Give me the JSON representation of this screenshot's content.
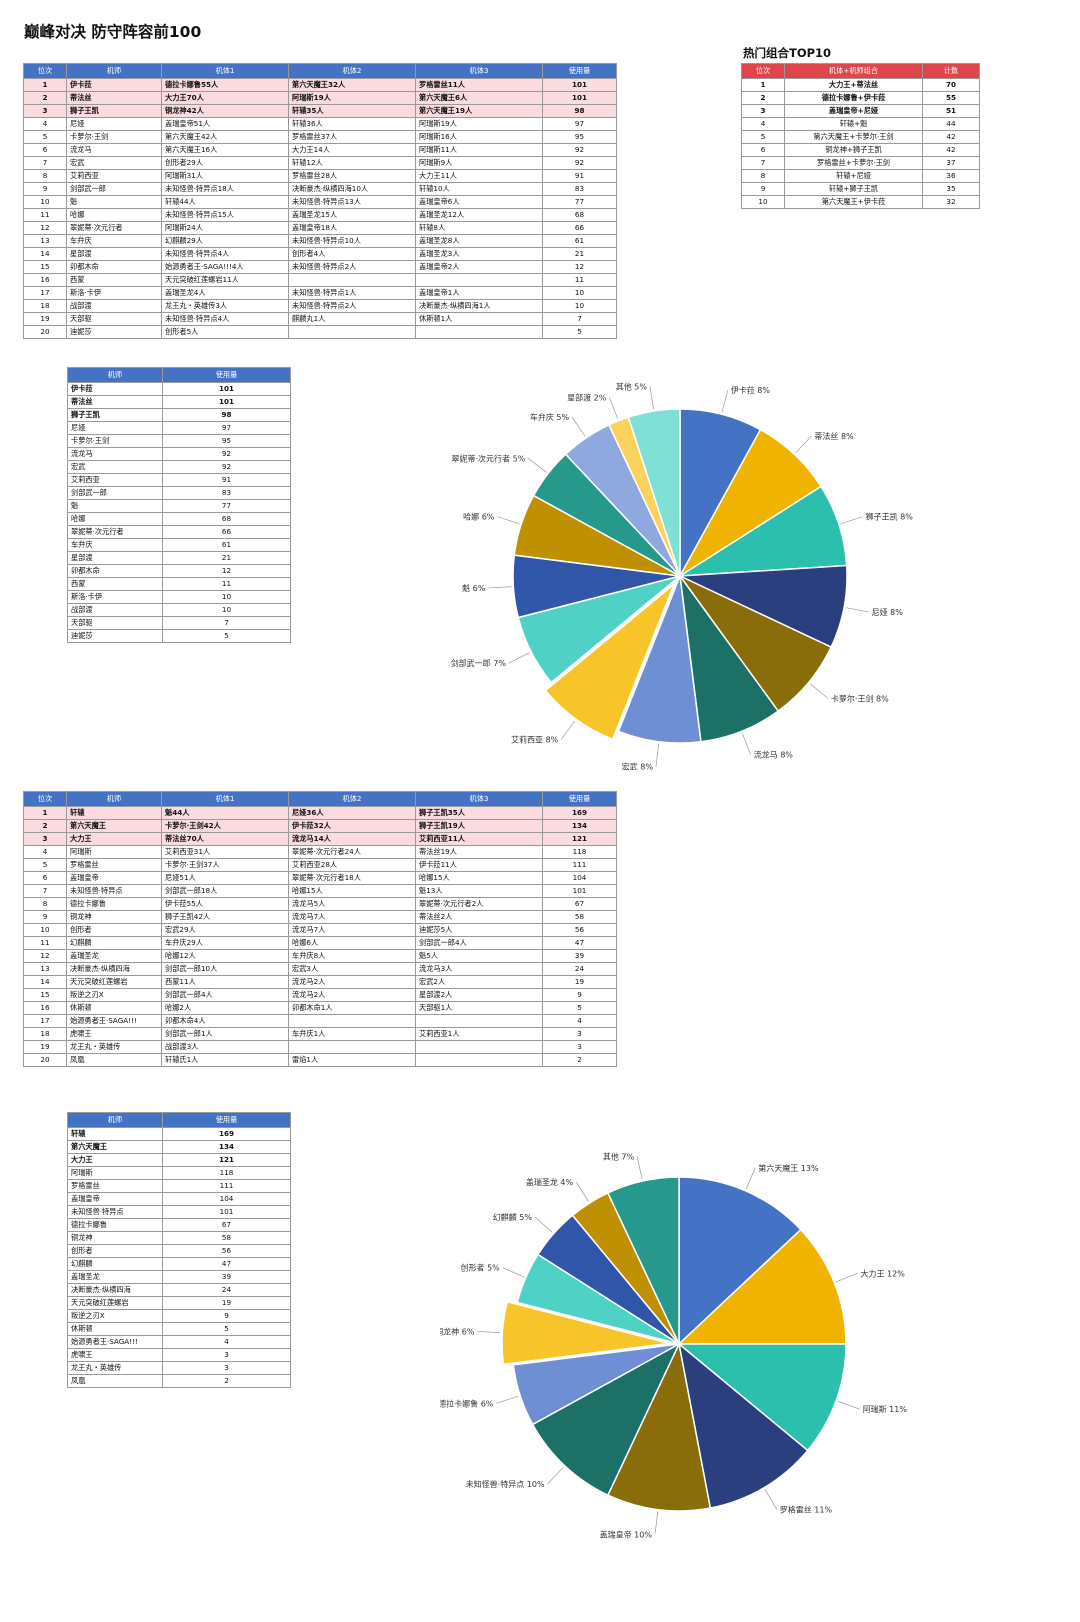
{
  "page_title": "巅峰对决 防守阵容前100",
  "top10_title": "热门组合TOP10",
  "table1": {
    "headers": [
      "位次",
      "机师",
      "机体1",
      "机体2",
      "机体3",
      "使用量"
    ],
    "rows": [
      [
        "1",
        "伊卡菈",
        "德拉卡娜鲁55人",
        "第六天魔王32人",
        "罗格雷丝11人",
        "101"
      ],
      [
        "2",
        "蒂法丝",
        "大力王70人",
        "阿瑞斯19人",
        "第六天魔王6人",
        "101"
      ],
      [
        "3",
        "狮子王凯",
        "铜龙神42人",
        "轩辕35人",
        "第六天魔王19人",
        "98"
      ],
      [
        "4",
        "尼娅",
        "盖瑞皇帝51人",
        "轩辕36人",
        "阿瑞斯19人",
        "97"
      ],
      [
        "5",
        "卡萝尔·王剑",
        "第六天魔王42人",
        "罗格雷丝37人",
        "阿瑞斯16人",
        "95"
      ],
      [
        "6",
        "流龙马",
        "第六天魔王16人",
        "大力王14人",
        "阿瑞斯11人",
        "92"
      ],
      [
        "7",
        "宏武",
        "创形者29人",
        "轩辕12人",
        "阿瑞斯9人",
        "92"
      ],
      [
        "8",
        "艾莉西亚",
        "阿瑞斯31人",
        "罗格雷丝28人",
        "大力王11人",
        "91"
      ],
      [
        "9",
        "剑部武一郎",
        "未知怪兽·特异点18人",
        "决断豪杰·纵横四海10人",
        "轩辕10人",
        "83"
      ],
      [
        "10",
        "魁",
        "轩辕44人",
        "未知怪兽·特异点13人",
        "盖瑞皇帝6人",
        "77"
      ],
      [
        "11",
        "哈娜",
        "未知怪兽·特异点15人",
        "盖瑞圣龙15人",
        "盖瑞圣龙12人",
        "68"
      ],
      [
        "12",
        "翠妮蒂·次元行者",
        "阿瑞斯24人",
        "盖瑞皇帝18人",
        "轩辕8人",
        "66"
      ],
      [
        "13",
        "车弁庆",
        "幻麒麟29人",
        "未知怪兽·特异点10人",
        "盖瑞圣龙8人",
        "61"
      ],
      [
        "14",
        "星部渡",
        "未知怪兽·特异点4人",
        "创形者4人",
        "盖瑞圣龙3人",
        "21"
      ],
      [
        "15",
        "卯都木命",
        "始源勇者王·SAGA!!!4人",
        "未知怪兽·特异点2人",
        "盖瑞皇帝2人",
        "12"
      ],
      [
        "16",
        "西蒙",
        "天元突破红莲螺岩11人",
        "",
        "",
        "11"
      ],
      [
        "17",
        "斯洛·卡伊",
        "盖瑞圣龙4人",
        "未知怪兽·特异点1人",
        "盖瑞皇帝1人",
        "10"
      ],
      [
        "18",
        "战部渡",
        "龙王丸・英雄传3人",
        "未知怪兽·特异点2人",
        "决断豪杰·纵横四海1人",
        "10"
      ],
      [
        "19",
        "天部驱",
        "未知怪兽·特异点4人",
        "麒麟丸1人",
        "休斯顿1人",
        "7"
      ],
      [
        "20",
        "迪妮莎",
        "创形者5人",
        "",
        "",
        "5"
      ]
    ]
  },
  "top10": {
    "headers": [
      "位次",
      "机体+机师组合",
      "计数"
    ],
    "rows": [
      [
        "1",
        "大力王+蒂法丝",
        "70"
      ],
      [
        "2",
        "德拉卡娜鲁+伊卡菈",
        "55"
      ],
      [
        "3",
        "盖瑞皇帝+尼娅",
        "51"
      ],
      [
        "4",
        "轩辕+魁",
        "44"
      ],
      [
        "5",
        "第六天魔王+卡萝尔·王剑",
        "42"
      ],
      [
        "6",
        "铜龙神+狮子王凯",
        "42"
      ],
      [
        "7",
        "罗格雷丝+卡萝尔·王剑",
        "37"
      ],
      [
        "8",
        "轩辕+尼娅",
        "36"
      ],
      [
        "9",
        "轩辕+狮子王凯",
        "35"
      ],
      [
        "10",
        "第六天魔王+伊卡菈",
        "32"
      ]
    ]
  },
  "table2": {
    "headers": [
      "机师",
      "使用量"
    ],
    "rows": [
      [
        "伊卡菈",
        "101"
      ],
      [
        "蒂法丝",
        "101"
      ],
      [
        "狮子王凯",
        "98"
      ],
      [
        "尼娅",
        "97"
      ],
      [
        "卡萝尔·王剑",
        "95"
      ],
      [
        "流龙马",
        "92"
      ],
      [
        "宏武",
        "92"
      ],
      [
        "艾莉西亚",
        "91"
      ],
      [
        "剑部武一郎",
        "83"
      ],
      [
        "魁",
        "77"
      ],
      [
        "哈娜",
        "68"
      ],
      [
        "翠妮蒂·次元行者",
        "66"
      ],
      [
        "车弁庆",
        "61"
      ],
      [
        "星部渡",
        "21"
      ],
      [
        "卯都木命",
        "12"
      ],
      [
        "西蒙",
        "11"
      ],
      [
        "斯洛·卡伊",
        "10"
      ],
      [
        "战部渡",
        "10"
      ],
      [
        "天部驱",
        "7"
      ],
      [
        "迪妮莎",
        "5"
      ]
    ]
  },
  "table3": {
    "headers": [
      "位次",
      "机师",
      "机体1",
      "机体2",
      "机体3",
      "使用量"
    ],
    "rows": [
      [
        "1",
        "轩辕",
        "魁44人",
        "尼娅36人",
        "狮子王凯35人",
        "169"
      ],
      [
        "2",
        "第六天魔王",
        "卡萝尔·王剑42人",
        "伊卡菈32人",
        "狮子王凯19人",
        "134"
      ],
      [
        "3",
        "大力王",
        "蒂法丝70人",
        "流龙马14人",
        "艾莉西亚11人",
        "121"
      ],
      [
        "4",
        "阿瑞斯",
        "艾莉西亚31人",
        "翠妮蒂·次元行者24人",
        "蒂法丝19人",
        "118"
      ],
      [
        "5",
        "罗格雷丝",
        "卡萝尔·王剑37人",
        "艾莉西亚28人",
        "伊卡菈11人",
        "111"
      ],
      [
        "6",
        "盖瑞皇帝",
        "尼娅51人",
        "翠妮蒂·次元行者18人",
        "哈娜15人",
        "104"
      ],
      [
        "7",
        "未知怪兽·特异点",
        "剑部武一郎18人",
        "哈娜15人",
        "魁13人",
        "101"
      ],
      [
        "8",
        "德拉卡娜鲁",
        "伊卡菈55人",
        "流龙马5人",
        "翠妮蒂·次元行者2人",
        "67"
      ],
      [
        "9",
        "铜龙神",
        "狮子王凯42人",
        "流龙马7人",
        "蒂法丝2人",
        "58"
      ],
      [
        "10",
        "创形者",
        "宏武29人",
        "流龙马7人",
        "迪妮莎5人",
        "56"
      ],
      [
        "11",
        "幻麒麟",
        "车弁庆29人",
        "哈娜6人",
        "剑部武一郎4人",
        "47"
      ],
      [
        "12",
        "盖瑞圣龙",
        "哈娜12人",
        "车弁庆8人",
        "魁5人",
        "39"
      ],
      [
        "13",
        "决断豪杰·纵横四海",
        "剑部武一郎10人",
        "宏武3人",
        "流龙马3人",
        "24"
      ],
      [
        "14",
        "天元突破红莲螺岩",
        "西蒙11人",
        "流龙马2人",
        "宏武2人",
        "19"
      ],
      [
        "15",
        "叛逆之刃X",
        "剑部武一郎4人",
        "流龙马2人",
        "星部渡2人",
        "9"
      ],
      [
        "16",
        "休斯顿",
        "哈娜2人",
        "卯都木命1人",
        "天部驱1人",
        "5"
      ],
      [
        "17",
        "始源勇者王·SAGA!!!",
        "卯都木命4人",
        "",
        "",
        "4"
      ],
      [
        "18",
        "虎啸王",
        "剑部武一郎1人",
        "车弁庆1人",
        "艾莉西亚1人",
        "3"
      ],
      [
        "19",
        "龙王丸・英雄传",
        "战部渡3人",
        "",
        "",
        "3"
      ],
      [
        "20",
        "凤凰",
        "轩辕氏1人",
        "雷焰1人",
        "",
        "2"
      ]
    ]
  },
  "table4": {
    "headers": [
      "机师",
      "使用量"
    ],
    "rows": [
      [
        "轩辕",
        "169"
      ],
      [
        "第六天魔王",
        "134"
      ],
      [
        "大力王",
        "121"
      ],
      [
        "阿瑞斯",
        "118"
      ],
      [
        "罗格雷丝",
        "111"
      ],
      [
        "盖瑞皇帝",
        "104"
      ],
      [
        "未知怪兽·特异点",
        "101"
      ],
      [
        "德拉卡娜鲁",
        "67"
      ],
      [
        "铜龙神",
        "58"
      ],
      [
        "创形者",
        "56"
      ],
      [
        "幻麒麟",
        "47"
      ],
      [
        "盖瑞圣龙",
        "39"
      ],
      [
        "决断豪杰·纵横四海",
        "24"
      ],
      [
        "天元突破红莲螺岩",
        "19"
      ],
      [
        "叛逆之刃X",
        "9"
      ],
      [
        "休斯顿",
        "5"
      ],
      [
        "始源勇者王·SAGA!!!",
        "4"
      ],
      [
        "虎啸王",
        "3"
      ],
      [
        "龙王丸・英雄传",
        "3"
      ],
      [
        "凤凰",
        "2"
      ]
    ]
  },
  "chart_data": [
    {
      "type": "pie",
      "title": "",
      "exploded": [
        "艾莉西亚"
      ],
      "slices": [
        {
          "label": "伊卡菈",
          "value": 8,
          "color": "#4472c4"
        },
        {
          "label": "蒂法丝",
          "value": 8,
          "color": "#f0b400"
        },
        {
          "label": "狮子王凯",
          "value": 8,
          "color": "#2cbfae"
        },
        {
          "label": "尼娅",
          "value": 8,
          "color": "#2b3f7e"
        },
        {
          "label": "卡萝尔·王剑",
          "value": 8,
          "color": "#8a6d0b"
        },
        {
          "label": "流龙马",
          "value": 8,
          "color": "#1c7065"
        },
        {
          "label": "宏武",
          "value": 8,
          "color": "#6f8fd4"
        },
        {
          "label": "艾莉西亚",
          "value": 8,
          "color": "#f7c42a"
        },
        {
          "label": "剑部武一郎",
          "value": 7,
          "color": "#4fd1c5"
        },
        {
          "label": "魁",
          "value": 6,
          "color": "#2f56a8"
        },
        {
          "label": "哈娜",
          "value": 6,
          "color": "#bf9100"
        },
        {
          "label": "翠妮蒂·次元行者",
          "value": 5,
          "color": "#27998c"
        },
        {
          "label": "车弁庆",
          "value": 5,
          "color": "#8fa9de"
        },
        {
          "label": "星部渡",
          "value": 2,
          "color": "#fbd35c"
        },
        {
          "label": "其他",
          "value": 5,
          "color": "#7fe0d6"
        }
      ]
    },
    {
      "type": "pie",
      "title": "",
      "exploded": [
        "铜龙神"
      ],
      "slices": [
        {
          "label": "第六天魔王",
          "value": 13,
          "color": "#4472c4"
        },
        {
          "label": "大力王",
          "value": 12,
          "color": "#f0b400"
        },
        {
          "label": "阿瑞斯",
          "value": 11,
          "color": "#2cbfae"
        },
        {
          "label": "罗格雷丝",
          "value": 11,
          "color": "#2b3f7e"
        },
        {
          "label": "盖瑞皇帝",
          "value": 10,
          "color": "#8a6d0b"
        },
        {
          "label": "未知怪兽·特异点",
          "value": 10,
          "color": "#1c7065"
        },
        {
          "label": "德拉卡娜鲁",
          "value": 6,
          "color": "#6f8fd4"
        },
        {
          "label": "铜龙神",
          "value": 6,
          "color": "#f7c42a"
        },
        {
          "label": "创形者",
          "value": 5,
          "color": "#4fd1c5"
        },
        {
          "label": "幻麒麟",
          "value": 5,
          "color": "#2f56a8"
        },
        {
          "label": "盖瑞圣龙",
          "value": 4,
          "color": "#bf9100"
        },
        {
          "label": "其他",
          "value": 7,
          "color": "#27998c"
        }
      ]
    }
  ]
}
